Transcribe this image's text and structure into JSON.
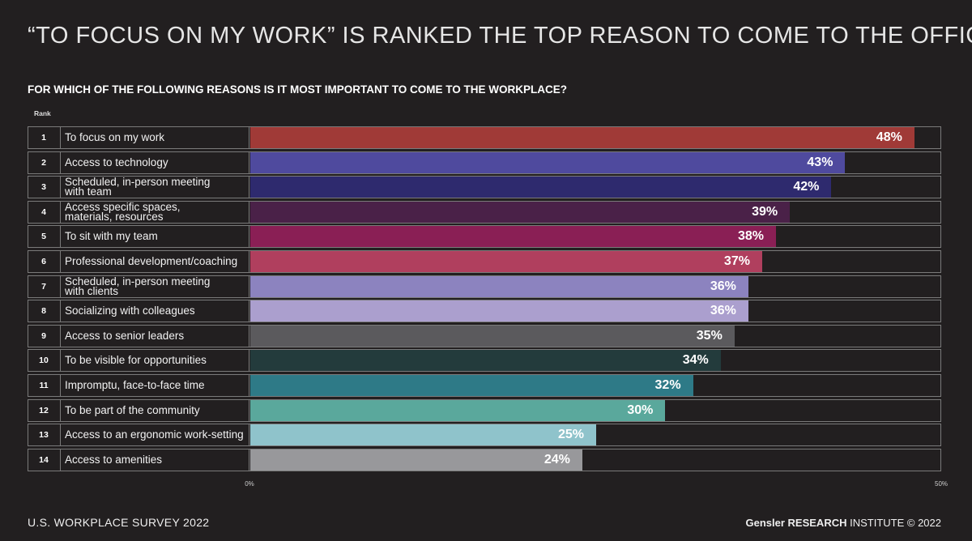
{
  "chart_data": {
    "type": "bar",
    "orientation": "horizontal",
    "title": "“TO FOCUS ON MY WORK” IS RANKED THE TOP REASON TO COME TO THE OFFICE",
    "subtitle": "FOR WHICH OF THE FOLLOWING REASONS IS IT MOST IMPORTANT TO COME TO THE WORKPLACE?",
    "rank_header": "Rank",
    "ranks": [
      1,
      2,
      3,
      4,
      5,
      6,
      7,
      8,
      9,
      10,
      11,
      12,
      13,
      14
    ],
    "categories": [
      "To focus on my work",
      "Access to technology",
      "Scheduled, in-person meeting\nwith team",
      "Access specific spaces,\nmaterials, resources",
      "To sit with my team",
      "Professional development/coaching",
      "Scheduled, in-person meeting\nwith clients",
      "Socializing with colleagues",
      "Access to senior leaders",
      "To be visible for opportunities",
      "Impromptu, face-to-face time",
      "To be part of the community",
      "Access to an ergonomic work-setting",
      "Access to amenities"
    ],
    "values": [
      48,
      43,
      42,
      39,
      38,
      37,
      36,
      36,
      35,
      34,
      32,
      30,
      25,
      24
    ],
    "value_labels": [
      "48%",
      "43%",
      "42%",
      "39%",
      "38%",
      "37%",
      "36%",
      "36%",
      "35%",
      "34%",
      "32%",
      "30%",
      "25%",
      "24%"
    ],
    "colors": [
      "#a03a37",
      "#4f4a9e",
      "#2e2a6e",
      "#4a2148",
      "#8a1f55",
      "#b03f5e",
      "#8c83bf",
      "#ab9fce",
      "#5b5a5d",
      "#233b3c",
      "#2e7a87",
      "#5aa89c",
      "#8fc3cb",
      "#98989b"
    ],
    "xlim": [
      0,
      50
    ],
    "xticks": [
      {
        "value": 0,
        "label": "0%"
      },
      {
        "value": 50,
        "label": "50%"
      }
    ],
    "footer_left": "U.S. WORKPLACE SURVEY 2022",
    "footer_brand": "Gensler RESEARCH",
    "footer_rest": "INSTITUTE © 2022"
  }
}
